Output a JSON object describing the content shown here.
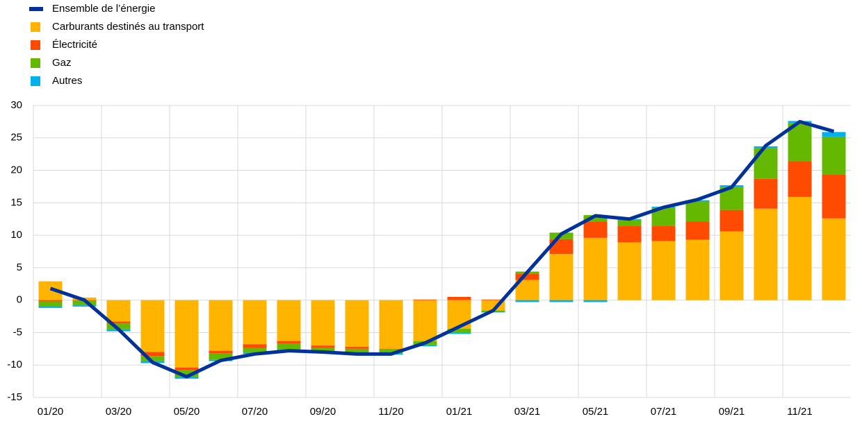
{
  "chart_data": {
    "type": "bar",
    "stacked": true,
    "categories": [
      "01/20",
      null,
      "03/20",
      null,
      "05/20",
      null,
      "07/20",
      null,
      "09/20",
      null,
      "11/20",
      null,
      "01/21",
      null,
      "03/21",
      null,
      "05/21",
      null,
      "07/21",
      null,
      "09/21",
      null,
      "11/21",
      null
    ],
    "series": [
      {
        "name": "Ensemble de l’énergie",
        "color": "#003299",
        "type": "line",
        "values": [
          1.8,
          0,
          -4.5,
          -9.6,
          -11.8,
          -9.3,
          -8.3,
          -7.8,
          -8.0,
          -8.3,
          -8.3,
          -6.6,
          -4.1,
          -1.6,
          4.3,
          10.2,
          13.0,
          12.5,
          14.3,
          15.5,
          17.4,
          23.8,
          27.5,
          26.0
        ]
      },
      {
        "name": "Carburants destinés au transport",
        "color": "#ffb400",
        "values": [
          2.9,
          0.4,
          -3.3,
          -8.0,
          -10.4,
          -7.8,
          -6.8,
          -6.3,
          -7.0,
          -7.2,
          -7.5,
          -6.3,
          -4.4,
          -1.6,
          3.1,
          7.1,
          9.6,
          8.9,
          9.1,
          9.3,
          10.6,
          14.1,
          15.9,
          12.6
        ]
      },
      {
        "name": "Électricité",
        "color": "#ff4b00",
        "values": [
          -0.2,
          -0.1,
          -0.3,
          -0.6,
          -0.4,
          -0.4,
          -0.6,
          -0.4,
          -0.3,
          -0.3,
          -0.1,
          0.1,
          0.5,
          0.1,
          1.0,
          2.3,
          2.5,
          2.5,
          2.3,
          2.8,
          3.3,
          4.6,
          5.5,
          6.8
        ]
      },
      {
        "name": "Gaz",
        "color": "#65b800",
        "values": [
          -0.8,
          -0.7,
          -0.9,
          -0.8,
          -1.1,
          -1.0,
          -0.7,
          -0.9,
          -0.6,
          -0.6,
          -0.6,
          -0.6,
          -0.6,
          -0.2,
          0.3,
          1.0,
          1.0,
          1.0,
          2.8,
          3.1,
          3.5,
          4.7,
          5.9,
          5.8
        ]
      },
      {
        "name": "Autres",
        "color": "#00b1ea",
        "values": [
          -0.2,
          -0.2,
          -0.3,
          -0.3,
          -0.2,
          -0.2,
          -0.2,
          -0.2,
          -0.2,
          -0.2,
          -0.2,
          -0.2,
          -0.2,
          -0.1,
          -0.3,
          -0.3,
          -0.3,
          0.1,
          0.2,
          0.2,
          0.3,
          0.3,
          0.3,
          0.7
        ]
      }
    ],
    "ylim": [
      -15,
      30
    ],
    "yticks": [
      -15,
      -10,
      -5,
      0,
      5,
      10,
      15,
      20,
      25,
      30
    ],
    "grid": true
  }
}
